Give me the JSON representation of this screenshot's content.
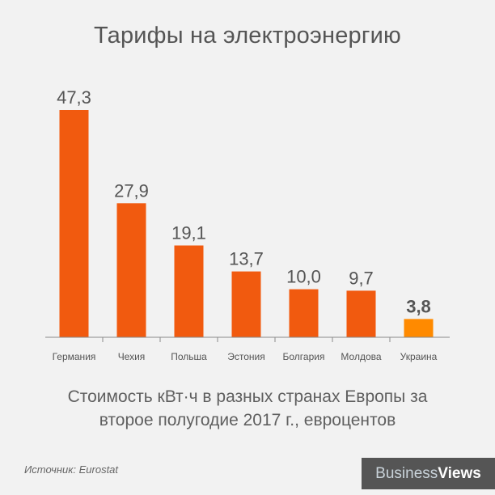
{
  "chart_data": {
    "type": "bar",
    "title": "Тарифы на электроэнергию",
    "subtitle_lines": [
      "Стоимость кВт·ч в разных странах Европы за",
      "второе полугодие 2017 г., евроцентов"
    ],
    "categories": [
      "Германия",
      "Чехия",
      "Польша",
      "Эстония",
      "Болгария",
      "Молдова",
      "Украина"
    ],
    "values": [
      47.3,
      27.9,
      19.1,
      13.7,
      10.0,
      9.7,
      3.8
    ],
    "value_labels": [
      "47,3",
      "27,9",
      "19,1",
      "13,7",
      "10,0",
      "9,7",
      "3,8"
    ],
    "highlight_index": 6,
    "ylim": [
      0,
      47.3
    ],
    "grid": false,
    "xlabel": "",
    "ylabel": ""
  },
  "colors": {
    "bar": "#f15a0f",
    "highlight_bar": "#ff8a00",
    "axis": "#8a8a8a",
    "text": "#555555",
    "background": "#f2f2f2"
  },
  "source": "Источник: Eurostat",
  "brand": {
    "part1": "Business",
    "part2": "Views"
  }
}
